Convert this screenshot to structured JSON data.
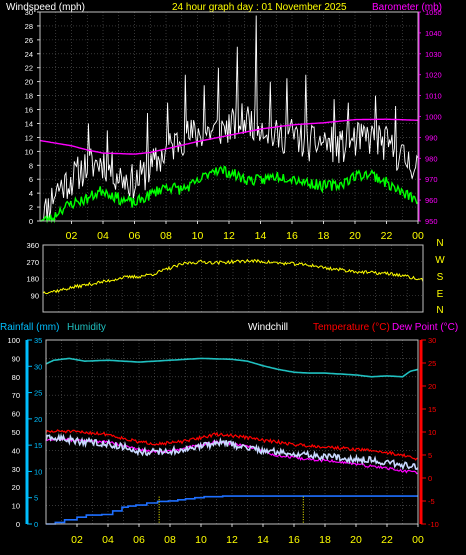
{
  "header": {
    "wind_label": "Windspeed (mph)",
    "title": "24 hour graph day : 01 November 2025",
    "baro_label": "Barometer (mb)"
  },
  "panel3_labels": {
    "rain": "Rainfall (mm)",
    "humidity": "Humidity",
    "windchill": "Windchill",
    "temperature": "Temperature (°C)",
    "dewpoint": "Dew Point (°C)"
  },
  "colors": {
    "background": "#000000",
    "panel_border": "#c0c0c0",
    "grid": "#5a5a5a",
    "axis_text": "#ffffff",
    "time_text": "#ffff00",
    "wind_gust": "#ffffff",
    "wind_avg": "#00ff00",
    "barometer": "#ff00ff",
    "direction": "#ffff00",
    "rain_axis": "#00bfff",
    "rain_line": "#1e6fff",
    "humidity": "#20c0c0",
    "windchill": "#ffffff",
    "temperature": "#ff0000",
    "dewpoint": "#ff00ff",
    "temp_axis": "#ff0000"
  },
  "chart_data": [
    {
      "type": "line",
      "panel": "wind_barometer",
      "x_ticks": [
        "02",
        "04",
        "06",
        "08",
        "10",
        "12",
        "14",
        "16",
        "18",
        "20",
        "22",
        "00"
      ],
      "x_range_hours": [
        0,
        24
      ],
      "y_left_label": "Windspeed (mph)",
      "y_left_ticks": [
        0,
        2,
        4,
        6,
        8,
        10,
        12,
        14,
        16,
        18,
        20,
        22,
        24,
        26,
        28,
        30
      ],
      "y_left_range": [
        0,
        30
      ],
      "y_right_label": "Barometer (mb)",
      "y_right_ticks": [
        950,
        960,
        970,
        980,
        990,
        1000,
        1010,
        1020,
        1030,
        1040,
        1050
      ],
      "y_right_range": [
        950,
        1050
      ],
      "series": [
        {
          "name": "Gust",
          "axis": "left",
          "style": "noisy",
          "amp": 2.6,
          "seed": 11,
          "points": [
            [
              0,
              0.3
            ],
            [
              0.4,
              1.5
            ],
            [
              1.0,
              4.5
            ],
            [
              2.0,
              6
            ],
            [
              3.0,
              8
            ],
            [
              4.0,
              8.5
            ],
            [
              5.0,
              6.5
            ],
            [
              6.0,
              5.5
            ],
            [
              7.0,
              7.5
            ],
            [
              8.0,
              10
            ],
            [
              9.0,
              12
            ],
            [
              10.0,
              12.5
            ],
            [
              11.0,
              13
            ],
            [
              12.0,
              13.5
            ],
            [
              13.0,
              14.5
            ],
            [
              14.0,
              14
            ],
            [
              15.0,
              12
            ],
            [
              16.0,
              12.5
            ],
            [
              17.0,
              11
            ],
            [
              18.0,
              11.5
            ],
            [
              19.0,
              10.5
            ],
            [
              20.0,
              11.5
            ],
            [
              21.0,
              12
            ],
            [
              22.0,
              11
            ],
            [
              23.0,
              9
            ],
            [
              24.0,
              8
            ]
          ],
          "spikes": [
            [
              12.5,
              25
            ],
            [
              13.7,
              29.5
            ],
            [
              11.3,
              22
            ],
            [
              9.2,
              21
            ],
            [
              15.7,
              20.5
            ],
            [
              14.6,
              20
            ],
            [
              16.9,
              21
            ],
            [
              18.7,
              17.5
            ],
            [
              21.3,
              18
            ],
            [
              22.6,
              16.5
            ],
            [
              8.1,
              17
            ],
            [
              6.8,
              15.5
            ],
            [
              3.1,
              14
            ],
            [
              4.3,
              13
            ],
            [
              10.4,
              19.5
            ],
            [
              19.6,
              17
            ]
          ]
        },
        {
          "name": "Average",
          "axis": "left",
          "style": "noisy",
          "amp": 0.8,
          "seed": 23,
          "points": [
            [
              0,
              0.0
            ],
            [
              0.8,
              0.3
            ],
            [
              1.2,
              1.5
            ],
            [
              2.0,
              2.5
            ],
            [
              3.0,
              3.2
            ],
            [
              4.0,
              4.5
            ],
            [
              5.0,
              3.2
            ],
            [
              6.0,
              2.5
            ],
            [
              7.0,
              3.8
            ],
            [
              8.0,
              5.0
            ],
            [
              9.0,
              4.5
            ],
            [
              10.0,
              5.5
            ],
            [
              11.0,
              7.5
            ],
            [
              12.0,
              7.0
            ],
            [
              13.0,
              6.0
            ],
            [
              14.0,
              5.8
            ],
            [
              15.0,
              6.5
            ],
            [
              16.0,
              6.2
            ],
            [
              17.0,
              5.5
            ],
            [
              18.0,
              5.0
            ],
            [
              19.0,
              5.2
            ],
            [
              20.0,
              6.5
            ],
            [
              21.0,
              6.8
            ],
            [
              22.0,
              5.5
            ],
            [
              23.0,
              4.0
            ],
            [
              24.0,
              3.0
            ]
          ]
        },
        {
          "name": "Barometer",
          "axis": "right",
          "style": "smooth",
          "points": [
            [
              0,
              988.5
            ],
            [
              2,
              986
            ],
            [
              3,
              984
            ],
            [
              4,
              982.5
            ],
            [
              6,
              982
            ],
            [
              7,
              982.8
            ],
            [
              8,
              984.5
            ],
            [
              10,
              988
            ],
            [
              12,
              991
            ],
            [
              14,
              994
            ],
            [
              16,
              996
            ],
            [
              18,
              997
            ],
            [
              20,
              998.5
            ],
            [
              22,
              998.7
            ],
            [
              24,
              998.2
            ]
          ]
        }
      ]
    },
    {
      "type": "line",
      "panel": "wind_direction",
      "x_range_hours": [
        0,
        24
      ],
      "y_left_ticks": [
        0,
        90,
        180,
        270,
        360
      ],
      "y_left_range": [
        0,
        360
      ],
      "y_right_labels": [
        "N",
        "W",
        "S",
        "E",
        "N"
      ],
      "series": [
        {
          "name": "Direction",
          "style": "noisy",
          "amp": 9,
          "seed": 37,
          "points": [
            [
              0,
              105
            ],
            [
              1,
              115
            ],
            [
              2,
              135
            ],
            [
              3,
              150
            ],
            [
              4,
              165
            ],
            [
              5,
              185
            ],
            [
              6,
              190
            ],
            [
              7,
              205
            ],
            [
              8,
              235
            ],
            [
              9,
              262
            ],
            [
              10,
              270
            ],
            [
              11,
              265
            ],
            [
              12,
              270
            ],
            [
              13,
              275
            ],
            [
              14,
              270
            ],
            [
              15,
              262
            ],
            [
              16,
              258
            ],
            [
              17,
              250
            ],
            [
              18,
              235
            ],
            [
              19,
              225
            ],
            [
              20,
              215
            ],
            [
              21,
              210
            ],
            [
              22,
              205
            ],
            [
              23,
              190
            ],
            [
              24,
              170
            ]
          ]
        }
      ]
    },
    {
      "type": "line",
      "panel": "rain_humidity_temperature",
      "x_ticks": [
        "02",
        "04",
        "06",
        "08",
        "10",
        "12",
        "14",
        "16",
        "18",
        "20",
        "22",
        "00"
      ],
      "x_range_hours": [
        0,
        24
      ],
      "y_left_outer_label": "Rainfall (mm)",
      "y_left_outer_ticks": [
        0,
        5,
        10,
        15,
        20,
        25,
        30,
        35
      ],
      "y_left_outer_range": [
        0,
        35
      ],
      "y_left_inner_label": "Humidity",
      "y_left_inner_ticks": [
        0,
        10,
        20,
        30,
        40,
        50,
        60,
        70,
        80,
        90,
        100
      ],
      "y_left_inner_range": [
        0,
        100
      ],
      "y_right_label": "Temperature (°C)",
      "y_right_ticks": [
        -10,
        -5,
        0,
        5,
        10,
        15,
        20,
        25,
        30
      ],
      "y_right_range": [
        -10,
        30
      ],
      "rain_markers_hours": [
        7.3,
        16.6
      ],
      "series": [
        {
          "name": "Humidity",
          "axis": "humidity",
          "style": "smooth",
          "points": [
            [
              0,
              87
            ],
            [
              0.5,
              89
            ],
            [
              1.5,
              90
            ],
            [
              2.5,
              88.5
            ],
            [
              4,
              89
            ],
            [
              6,
              88
            ],
            [
              8,
              89
            ],
            [
              10,
              90
            ],
            [
              12,
              89.5
            ],
            [
              13,
              88.5
            ],
            [
              14,
              86
            ],
            [
              15,
              84
            ],
            [
              16,
              82.5
            ],
            [
              17,
              82
            ],
            [
              18,
              82
            ],
            [
              19,
              81.5
            ],
            [
              20,
              81
            ],
            [
              21,
              80
            ],
            [
              22,
              80.5
            ],
            [
              23,
              80
            ],
            [
              23.5,
              83
            ],
            [
              24,
              84
            ]
          ]
        },
        {
          "name": "Temperature",
          "axis": "temperature",
          "style": "noisy",
          "amp": 0.35,
          "seed": 51,
          "points": [
            [
              0,
              10
            ],
            [
              1,
              10.2
            ],
            [
              2,
              10
            ],
            [
              3,
              9.8
            ],
            [
              4,
              9.5
            ],
            [
              5,
              8.6
            ],
            [
              6,
              7.8
            ],
            [
              7,
              7.5
            ],
            [
              8,
              7.6
            ],
            [
              9,
              8
            ],
            [
              10,
              8.8
            ],
            [
              11,
              9.5
            ],
            [
              12,
              9.2
            ],
            [
              13,
              8.8
            ],
            [
              14,
              8.2
            ],
            [
              15,
              7.8
            ],
            [
              16,
              7.3
            ],
            [
              17,
              7
            ],
            [
              18,
              6.8
            ],
            [
              19,
              6.5
            ],
            [
              20,
              6.2
            ],
            [
              21,
              6
            ],
            [
              22,
              5.5
            ],
            [
              23,
              5
            ],
            [
              24,
              4
            ]
          ]
        },
        {
          "name": "Windchill",
          "axis": "temperature",
          "style": "noisy",
          "amp": 0.75,
          "seed": 63,
          "points": [
            [
              0,
              8.5
            ],
            [
              1,
              8.6
            ],
            [
              2,
              8.0
            ],
            [
              3,
              7.8
            ],
            [
              4,
              7.4
            ],
            [
              5,
              6.8
            ],
            [
              6,
              5.8
            ],
            [
              7,
              5.6
            ],
            [
              8,
              5.8
            ],
            [
              9,
              6.2
            ],
            [
              10,
              6.9
            ],
            [
              11,
              7.7
            ],
            [
              12,
              7.3
            ],
            [
              13,
              6.6
            ],
            [
              14,
              6
            ],
            [
              15,
              5.6
            ],
            [
              16,
              5.3
            ],
            [
              17,
              4.9
            ],
            [
              18,
              4.7
            ],
            [
              19,
              4.4
            ],
            [
              20,
              4.1
            ],
            [
              21,
              3.9
            ],
            [
              22,
              3.4
            ],
            [
              23,
              2.9
            ],
            [
              24,
              2.3
            ]
          ]
        },
        {
          "name": "Dew Point",
          "axis": "temperature",
          "style": "noisy",
          "amp": 0.3,
          "seed": 77,
          "points": [
            [
              0,
              8.3
            ],
            [
              1,
              8.5
            ],
            [
              2,
              8.2
            ],
            [
              3,
              8
            ],
            [
              4,
              7.8
            ],
            [
              5,
              7
            ],
            [
              6,
              6.2
            ],
            [
              7,
              5.6
            ],
            [
              8,
              5.8
            ],
            [
              9,
              6.5
            ],
            [
              10,
              7.2
            ],
            [
              11,
              7.8
            ],
            [
              12,
              7.5
            ],
            [
              13,
              7
            ],
            [
              14,
              5.8
            ],
            [
              15,
              4.8
            ],
            [
              16,
              4.4
            ],
            [
              17,
              4
            ],
            [
              18,
              3.8
            ],
            [
              19,
              3.5
            ],
            [
              20,
              3
            ],
            [
              21,
              2.5
            ],
            [
              22,
              2.2
            ],
            [
              23,
              1.5
            ],
            [
              24,
              1.2
            ]
          ]
        },
        {
          "name": "Rainfall",
          "axis": "rain",
          "style": "step",
          "points": [
            [
              0,
              0
            ],
            [
              0.6,
              0.3
            ],
            [
              1.2,
              0.8
            ],
            [
              2,
              1.3
            ],
            [
              2.6,
              1.7
            ],
            [
              3.6,
              1.8
            ],
            [
              4.3,
              2.5
            ],
            [
              4.9,
              3.2
            ],
            [
              5.3,
              3.4
            ],
            [
              5.8,
              3.6
            ],
            [
              6.5,
              4
            ],
            [
              7.2,
              4.3
            ],
            [
              7.9,
              4.4
            ],
            [
              8.5,
              4.6
            ],
            [
              9,
              4.8
            ],
            [
              9.6,
              5
            ],
            [
              10.2,
              5.2
            ],
            [
              11.4,
              5.3
            ],
            [
              24,
              5.3
            ]
          ]
        }
      ]
    }
  ]
}
